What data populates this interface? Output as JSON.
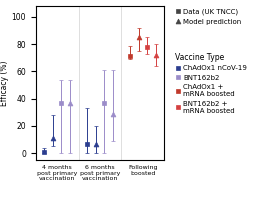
{
  "chart_data": {
    "type": "errorbar",
    "ylabel": "Efficacy (%)",
    "categories": [
      "4 months\npost primary\nvaccination",
      "6 months\npost primary\nvaccination",
      "Following\nboosted"
    ],
    "ylim": [
      -5,
      108
    ],
    "yticks": [
      0,
      20,
      40,
      60,
      80,
      100
    ],
    "kinds": [
      {
        "name": "Data (UK TNCC)",
        "marker": "square",
        "color": "#444444"
      },
      {
        "name": "Model prediction",
        "marker": "triangle",
        "color": "#444444"
      }
    ],
    "legend_title": "Vaccine Type",
    "series": [
      {
        "name": "ChAdOx1 nCoV-19",
        "kind": "Data (UK TNCC)",
        "color": "#2b3d8f",
        "marker": "square",
        "values": [
          1,
          7,
          null
        ],
        "yerr_low": [
          1,
          7,
          null
        ],
        "yerr_high": [
          3,
          26,
          null
        ]
      },
      {
        "name": "ChAdOx1 nCoV-19",
        "kind": "Model prediction",
        "color": "#2b3d8f",
        "marker": "triangle",
        "values": [
          11,
          7,
          null
        ],
        "yerr_low": [
          6,
          7,
          null
        ],
        "yerr_high": [
          17,
          13,
          null
        ]
      },
      {
        "name": "BNT162b2",
        "kind": "Data (UK TNCC)",
        "color": "#9b8cc9",
        "marker": "square",
        "values": [
          37,
          37,
          null
        ],
        "yerr_low": [
          37,
          37,
          null
        ],
        "yerr_high": [
          17,
          24,
          null
        ]
      },
      {
        "name": "BNT162b2",
        "kind": "Model prediction",
        "color": "#9b8cc9",
        "marker": "triangle",
        "values": [
          37,
          29,
          null
        ],
        "yerr_low": [
          37,
          20,
          null
        ],
        "yerr_high": [
          17,
          32,
          null
        ]
      },
      {
        "name": "ChAdOx1 +\nmRNA boosted",
        "kind": "Data (UK TNCC)",
        "color": "#c0392b",
        "marker": "square",
        "values": [
          null,
          null,
          71
        ],
        "yerr_low": [
          null,
          null,
          2
        ],
        "yerr_high": [
          null,
          null,
          8
        ]
      },
      {
        "name": "ChAdOx1 +\nmRNA boosted",
        "kind": "Model prediction",
        "color": "#c0392b",
        "marker": "triangle",
        "values": [
          null,
          null,
          85
        ],
        "yerr_low": [
          null,
          null,
          10
        ],
        "yerr_high": [
          null,
          null,
          7
        ]
      },
      {
        "name": "BNT162b2 +\nmRNA boosted",
        "kind": "Data (UK TNCC)",
        "color": "#d44040",
        "marker": "square",
        "values": [
          null,
          null,
          78
        ],
        "yerr_low": [
          null,
          null,
          5
        ],
        "yerr_high": [
          null,
          null,
          7
        ]
      },
      {
        "name": "BNT162b2 +\nmRNA boosted",
        "kind": "Model prediction",
        "color": "#d44040",
        "marker": "triangle",
        "values": [
          null,
          null,
          72
        ],
        "yerr_low": [
          null,
          null,
          8
        ],
        "yerr_high": [
          null,
          null,
          8
        ]
      }
    ]
  }
}
